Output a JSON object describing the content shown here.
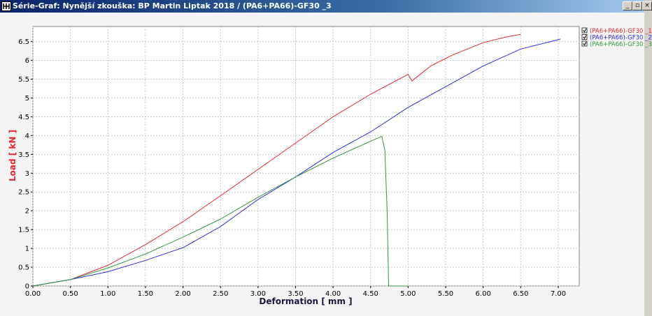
{
  "window_title": "Série-Graf:  Nynější zkouška:  BP Martin Liptak 2018 / (PA6+PA66)-GF30 _3",
  "chart_data": {
    "type": "line",
    "x_label": "Deformation [ mm ]",
    "y_label": "Load [ kN ]",
    "xlim": [
      0,
      7.28
    ],
    "ylim": [
      0,
      6.9
    ],
    "xticks": [
      {
        "value": 0,
        "label": "0.00"
      },
      {
        "value": 0.5,
        "label": "0.50"
      },
      {
        "value": 1,
        "label": "1.00"
      },
      {
        "value": 1.5,
        "label": "1.50"
      },
      {
        "value": 2,
        "label": "2.00"
      },
      {
        "value": 2.5,
        "label": "2.50"
      },
      {
        "value": 3,
        "label": "3.00"
      },
      {
        "value": 3.5,
        "label": "3.50"
      },
      {
        "value": 4,
        "label": "4.00"
      },
      {
        "value": 4.5,
        "label": "4.50"
      },
      {
        "value": 5,
        "label": "5.00"
      },
      {
        "value": 5.5,
        "label": "5.50"
      },
      {
        "value": 6,
        "label": "6.00"
      },
      {
        "value": 6.5,
        "label": "6.50"
      },
      {
        "value": 7,
        "label": "7.00"
      }
    ],
    "yticks": [
      0,
      0.5,
      1,
      1.5,
      2,
      2.5,
      3,
      3.5,
      4,
      4.5,
      5,
      5.5,
      6,
      6.5
    ],
    "grid": true,
    "legend": "top-right",
    "series": [
      {
        "name": "(PA6+PA66)-GF30 _1",
        "color": "#e8262b",
        "x": [
          0,
          0.5,
          1,
          1.5,
          2,
          2.5,
          3,
          3.5,
          4,
          4.5,
          5,
          5.05,
          5.3,
          5.6,
          6,
          6.3,
          6.5
        ],
        "values": [
          0,
          0.17,
          0.55,
          1.1,
          1.71,
          2.4,
          3.1,
          3.8,
          4.5,
          5.1,
          5.63,
          5.45,
          5.85,
          6.15,
          6.47,
          6.62,
          6.69
        ]
      },
      {
        "name": "(PA6+PA66)-GF30 _2",
        "color": "#2b2be8",
        "x": [
          0,
          0.5,
          1,
          1.5,
          2,
          2.5,
          3,
          3.5,
          4,
          4.5,
          5,
          5.5,
          6,
          6.5,
          7,
          7.03
        ],
        "values": [
          0,
          0.17,
          0.38,
          0.68,
          1.02,
          1.58,
          2.3,
          2.9,
          3.55,
          4.1,
          4.75,
          5.3,
          5.85,
          6.3,
          6.55,
          6.57
        ]
      },
      {
        "name": "(PA6+PA66)-GF30 _3",
        "color": "#2a9a3a",
        "x": [
          0,
          0.5,
          1,
          1.5,
          2,
          2.5,
          3,
          3.5,
          4,
          4.5,
          4.65,
          4.69,
          4.72,
          4.74,
          5
        ],
        "values": [
          0,
          0.17,
          0.48,
          0.85,
          1.3,
          1.78,
          2.36,
          2.9,
          3.4,
          3.85,
          3.98,
          3.6,
          2,
          0,
          0
        ]
      }
    ]
  }
}
